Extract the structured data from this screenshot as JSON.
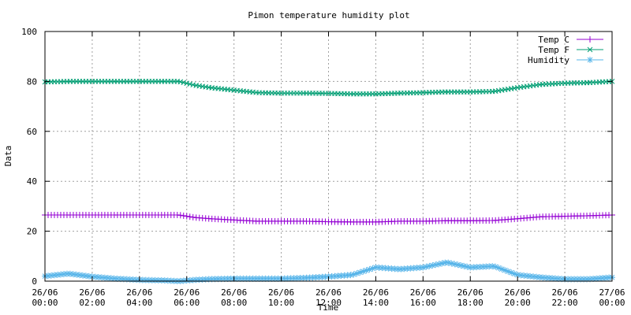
{
  "chart_data": {
    "type": "line",
    "title": "Pimon temperature   humidity plot",
    "xlabel": "Time",
    "ylabel": "Data",
    "ylim": [
      0,
      100
    ],
    "yticks": [
      0,
      20,
      40,
      60,
      80,
      100
    ],
    "xlim": [
      "26/06 00:00",
      "27/06 00:00"
    ],
    "xticks": [
      {
        "date": "26/06",
        "time": "00:00"
      },
      {
        "date": "26/06",
        "time": "02:00"
      },
      {
        "date": "26/06",
        "time": "04:00"
      },
      {
        "date": "26/06",
        "time": "06:00"
      },
      {
        "date": "26/06",
        "time": "08:00"
      },
      {
        "date": "26/06",
        "time": "10:00"
      },
      {
        "date": "26/06",
        "time": "12:00"
      },
      {
        "date": "26/06",
        "time": "14:00"
      },
      {
        "date": "26/06",
        "time": "16:00"
      },
      {
        "date": "26/06",
        "time": "18:00"
      },
      {
        "date": "26/06",
        "time": "20:00"
      },
      {
        "date": "26/06",
        "time": "22:00"
      },
      {
        "date": "27/06",
        "time": "00:00"
      }
    ],
    "grid": true,
    "legend_position": "top-right",
    "x": [
      "26/06 00:00",
      "26/06 01:00",
      "26/06 02:00",
      "26/06 03:00",
      "26/06 04:00",
      "26/06 05:00",
      "26/06 05:40",
      "26/06 06:20",
      "26/06 07:00",
      "26/06 08:00",
      "26/06 09:00",
      "26/06 10:00",
      "26/06 11:00",
      "26/06 12:00",
      "26/06 13:00",
      "26/06 14:00",
      "26/06 15:00",
      "26/06 16:00",
      "26/06 17:00",
      "26/06 18:00",
      "26/06 19:00",
      "26/06 20:00",
      "26/06 21:00",
      "26/06 22:00",
      "26/06 23:00",
      "27/06 00:00"
    ],
    "series": [
      {
        "name": "Temp C",
        "marker": "plus",
        "color": "#9400d3",
        "values": [
          26.5,
          26.5,
          26.5,
          26.5,
          26.5,
          26.5,
          26.5,
          25.5,
          25.0,
          24.5,
          24.0,
          24.0,
          24.0,
          23.8,
          23.7,
          23.7,
          24.0,
          24.0,
          24.2,
          24.2,
          24.3,
          25.0,
          25.8,
          26.0,
          26.2,
          26.5
        ]
      },
      {
        "name": "Temp F",
        "marker": "cross",
        "color": "#009e73",
        "values": [
          79.8,
          80.0,
          80.0,
          80.0,
          80.0,
          80.0,
          80.0,
          78.5,
          77.5,
          76.5,
          75.5,
          75.3,
          75.3,
          75.2,
          75.0,
          75.0,
          75.3,
          75.5,
          75.8,
          75.8,
          76.0,
          77.5,
          78.8,
          79.3,
          79.5,
          80.0
        ]
      },
      {
        "name": "Humidity",
        "marker": "star",
        "color": "#56b4e9",
        "values": [
          2.0,
          3.0,
          1.8,
          1.0,
          0.5,
          0.3,
          0.0,
          0.5,
          0.8,
          1.0,
          1.0,
          1.0,
          1.3,
          1.8,
          2.5,
          5.5,
          4.8,
          5.5,
          7.5,
          5.5,
          6.0,
          2.5,
          1.5,
          0.8,
          0.8,
          1.5
        ]
      }
    ]
  }
}
